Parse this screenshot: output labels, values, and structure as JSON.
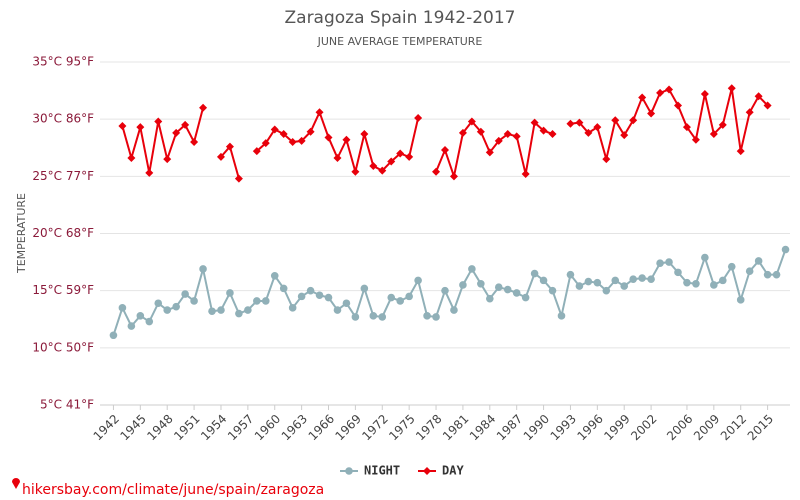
{
  "chart_data": {
    "type": "line",
    "title": "Zaragoza Spain 1942-2017",
    "subtitle": "JUNE AVERAGE TEMPERATURE",
    "y_label": "TEMPERATURE",
    "footer": "hikersbay.com/climate/june/spain/zaragoza",
    "x": [
      1942,
      1943,
      1944,
      1945,
      1946,
      1947,
      1948,
      1949,
      1950,
      1951,
      1952,
      1953,
      1954,
      1955,
      1956,
      1957,
      1958,
      1959,
      1960,
      1961,
      1962,
      1963,
      1964,
      1965,
      1966,
      1967,
      1968,
      1969,
      1970,
      1971,
      1972,
      1973,
      1974,
      1975,
      1976,
      1977,
      1978,
      1979,
      1980,
      1981,
      1982,
      1983,
      1984,
      1985,
      1986,
      1987,
      1988,
      1989,
      1990,
      1991,
      1992,
      1993,
      1994,
      1995,
      1996,
      1997,
      1998,
      1999,
      2000,
      2001,
      2002,
      2003,
      2004,
      2005,
      2006,
      2007,
      2008,
      2009,
      2010,
      2011,
      2012,
      2013,
      2014,
      2015,
      2016,
      2017
    ],
    "xlim": [
      1940.5,
      2017.5
    ],
    "xticks": [
      1942,
      1945,
      1948,
      1951,
      1954,
      1957,
      1960,
      1963,
      1966,
      1969,
      1972,
      1975,
      1978,
      1981,
      1984,
      1987,
      1990,
      1993,
      1996,
      1999,
      2002,
      2006,
      2009,
      2012,
      2015
    ],
    "ylim": [
      5,
      35
    ],
    "yticks": [
      {
        "value": 5,
        "label": "5°C 41°F"
      },
      {
        "value": 10,
        "label": "10°C 50°F"
      },
      {
        "value": 15,
        "label": "15°C 59°F"
      },
      {
        "value": 20,
        "label": "20°C 68°F"
      },
      {
        "value": 25,
        "label": "25°C 77°F"
      },
      {
        "value": 30,
        "label": "30°C 86°F"
      },
      {
        "value": 35,
        "label": "35°C 95°F"
      }
    ],
    "grid": true,
    "legend": "bottom",
    "series": [
      {
        "name": "NIGHT",
        "color": "#90b0b8",
        "marker": "circle",
        "values": [
          11.1,
          13.5,
          11.9,
          12.8,
          12.3,
          13.9,
          13.3,
          13.6,
          14.7,
          14.1,
          16.9,
          13.2,
          13.3,
          14.8,
          13.0,
          13.3,
          14.1,
          14.1,
          16.3,
          15.2,
          13.5,
          14.5,
          15.0,
          14.6,
          14.4,
          13.3,
          13.9,
          12.7,
          15.2,
          12.8,
          12.7,
          14.4,
          14.1,
          14.5,
          15.9,
          12.8,
          12.7,
          15.0,
          13.3,
          15.5,
          16.9,
          15.6,
          14.3,
          15.3,
          15.1,
          14.8,
          14.4,
          16.5,
          15.9,
          15.0,
          12.8,
          16.4,
          15.4,
          15.8,
          15.7,
          15.0,
          15.9,
          15.4,
          16.0,
          16.1,
          16.0,
          17.4,
          17.5,
          16.6,
          15.7,
          15.6,
          17.9,
          15.5,
          15.9,
          17.1,
          14.2,
          16.7,
          17.6,
          16.4,
          16.4,
          18.6
        ]
      },
      {
        "name": "DAY",
        "color": "#e8000b",
        "marker": "diamond",
        "values": [
          null,
          29.4,
          26.6,
          29.3,
          25.3,
          29.8,
          26.5,
          28.8,
          29.5,
          28.0,
          31.0,
          null,
          26.7,
          27.6,
          24.8,
          null,
          27.2,
          27.9,
          29.1,
          28.7,
          28.0,
          28.1,
          28.9,
          30.6,
          28.4,
          26.6,
          28.2,
          25.4,
          28.7,
          25.9,
          25.5,
          26.3,
          27.0,
          26.7,
          30.1,
          null,
          25.4,
          27.3,
          25.0,
          28.8,
          29.8,
          28.9,
          27.1,
          28.1,
          28.7,
          28.5,
          25.2,
          29.7,
          29.0,
          28.7,
          null,
          29.6,
          29.7,
          28.8,
          29.3,
          26.5,
          29.9,
          28.6,
          29.9,
          31.9,
          30.5,
          32.3,
          32.6,
          31.2,
          29.3,
          28.2,
          32.2,
          28.7,
          29.5,
          32.7,
          27.2,
          30.6,
          32.0,
          31.2,
          null,
          null
        ]
      }
    ]
  }
}
